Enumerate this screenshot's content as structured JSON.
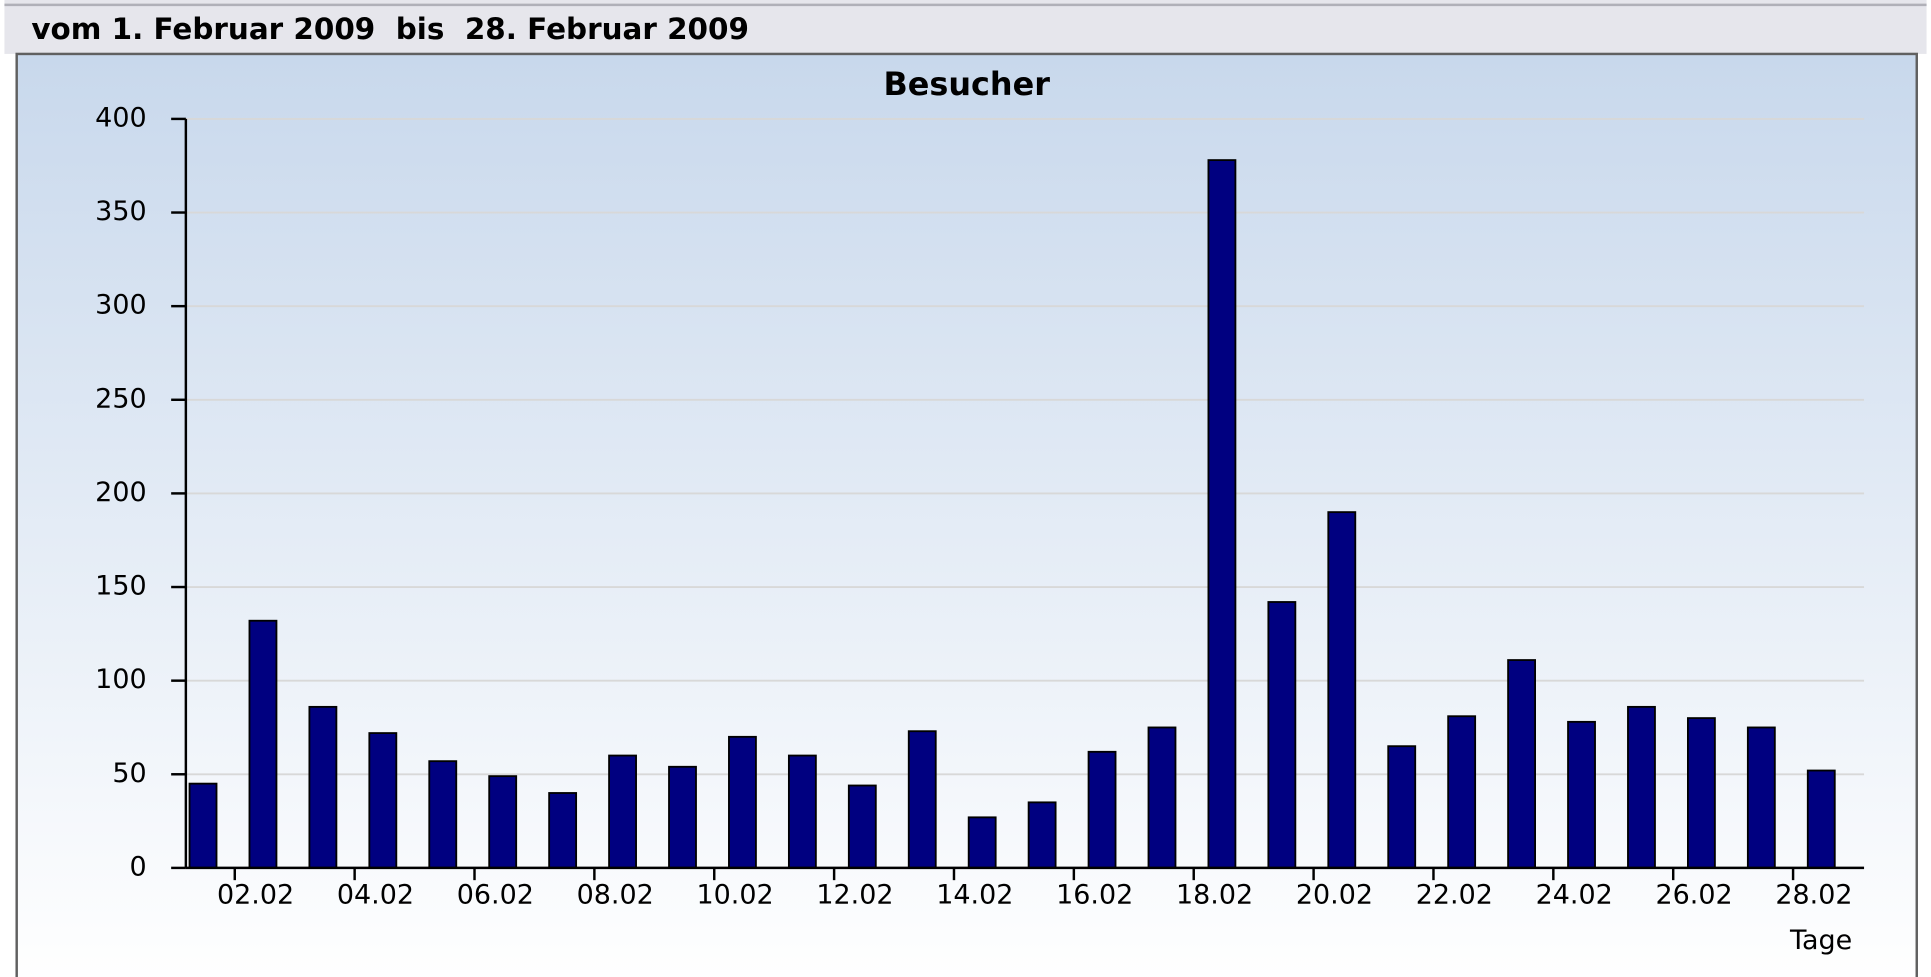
{
  "header": {
    "title": "vom 1. Februar 2009  bis  28. Februar 2009"
  },
  "chart_data": {
    "type": "bar",
    "title": "Besucher",
    "x_label": "Tage",
    "categories": [
      null,
      "02.02",
      null,
      "04.02",
      null,
      "06.02",
      null,
      "08.02",
      null,
      "10.02",
      null,
      "12.02",
      null,
      "14.02",
      null,
      "16.02",
      null,
      "18.02",
      null,
      "20.02",
      null,
      "22.02",
      null,
      "24.02",
      null,
      "26.02",
      null,
      "28.02"
    ],
    "values": [
      45,
      132,
      86,
      72,
      57,
      49,
      40,
      60,
      54,
      70,
      60,
      44,
      73,
      27,
      35,
      62,
      75,
      378,
      142,
      190,
      65,
      81,
      111,
      78,
      86,
      80,
      75,
      52
    ],
    "color": "#000080",
    "ylim": [
      0,
      400
    ],
    "yticks": [
      0,
      50,
      100,
      150,
      200,
      250,
      300,
      350,
      400
    ],
    "grid": true
  }
}
